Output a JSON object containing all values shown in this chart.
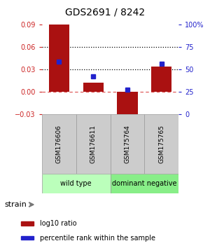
{
  "title": "GDS2691 / 8242",
  "samples": [
    "GSM176606",
    "GSM176611",
    "GSM175764",
    "GSM175765"
  ],
  "log10_ratio": [
    0.09,
    0.012,
    -0.038,
    0.034
  ],
  "percentile_rank_pct": [
    58.5,
    42.0,
    27.0,
    56.5
  ],
  "ylim_left": [
    -0.03,
    0.09
  ],
  "ylim_right": [
    0,
    100
  ],
  "yticks_left": [
    -0.03,
    0,
    0.03,
    0.06,
    0.09
  ],
  "yticks_right": [
    0,
    25,
    50,
    75,
    100
  ],
  "ytick_right_labels": [
    "0",
    "25",
    "50",
    "75",
    "100%"
  ],
  "hlines_dotted": [
    0.03,
    0.06
  ],
  "hline_dashed": 0.0,
  "bar_color": "#aa1111",
  "dot_color": "#2222cc",
  "left_tick_color": "#cc2222",
  "right_tick_color": "#2222cc",
  "sample_box_color": "#cccccc",
  "groups": [
    {
      "label": "wild type",
      "samples": [
        0,
        1
      ],
      "color": "#bbffbb"
    },
    {
      "label": "dominant negative",
      "samples": [
        2,
        3
      ],
      "color": "#88ee88"
    }
  ],
  "strain_label": "strain",
  "legend_bar_label": "log10 ratio",
  "legend_dot_label": "percentile rank within the sample",
  "background_color": "#ffffff",
  "bar_width": 0.6
}
